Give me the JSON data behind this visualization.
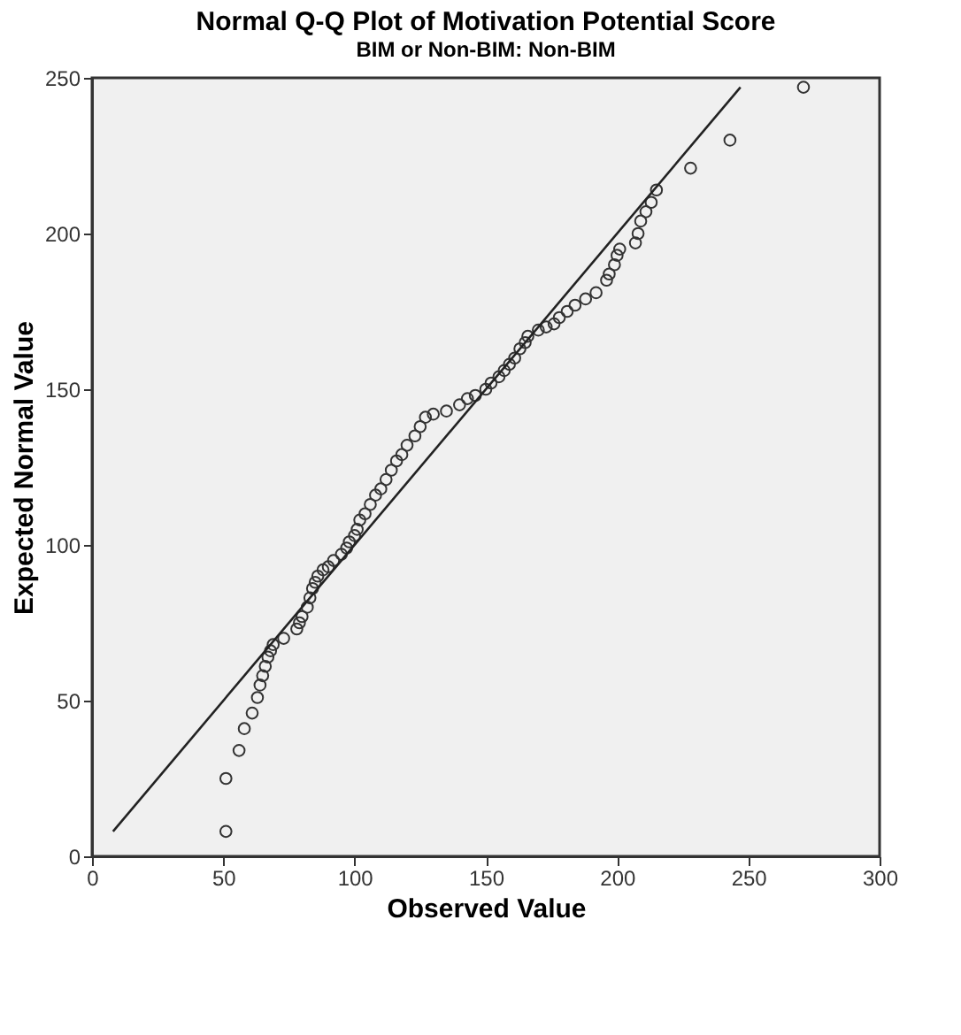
{
  "chart_data": {
    "type": "scatter",
    "title": "Normal Q-Q Plot of Motivation Potential Score",
    "subtitle": "BIM or Non-BIM: Non-BIM",
    "xlabel": "Observed Value",
    "ylabel": "Expected Normal Value",
    "xlim": [
      0,
      300
    ],
    "ylim": [
      0,
      250
    ],
    "xticks": [
      0,
      50,
      100,
      150,
      200,
      250,
      300
    ],
    "yticks": [
      0,
      50,
      100,
      150,
      200,
      250
    ],
    "grid": false,
    "marker": "circle",
    "series": [
      {
        "type": "scatter",
        "color": "#333333",
        "x": [
          51,
          51,
          56,
          58,
          61,
          63,
          64,
          65,
          66,
          67,
          68,
          69,
          73,
          78,
          79,
          80,
          82,
          83,
          84,
          85,
          86,
          88,
          90,
          92,
          95,
          97,
          98,
          100,
          101,
          102,
          104,
          106,
          108,
          110,
          112,
          114,
          116,
          118,
          120,
          123,
          125,
          127,
          130,
          135,
          140,
          143,
          146,
          150,
          152,
          155,
          157,
          159,
          161,
          163,
          165,
          166,
          170,
          173,
          176,
          178,
          181,
          184,
          188,
          192,
          196,
          197,
          199,
          200,
          201,
          207,
          208,
          209,
          211,
          213,
          215,
          228,
          243,
          271
        ],
        "values": [
          8,
          25,
          34,
          41,
          46,
          51,
          55,
          58,
          61,
          64,
          66,
          68,
          70,
          73,
          75,
          77,
          80,
          83,
          86,
          88,
          90,
          92,
          93,
          95,
          97,
          99,
          101,
          103,
          105,
          108,
          110,
          113,
          116,
          118,
          121,
          124,
          127,
          129,
          132,
          135,
          138,
          141,
          142,
          143,
          145,
          147,
          148,
          150,
          152,
          154,
          156,
          158,
          160,
          163,
          165,
          167,
          169,
          170,
          171,
          173,
          175,
          177,
          179,
          181,
          185,
          187,
          190,
          193,
          195,
          197,
          200,
          204,
          207,
          210,
          214,
          221,
          230,
          247
        ]
      },
      {
        "type": "line",
        "color": "#222222",
        "line_style": "solid",
        "marker": "none",
        "x": [
          8,
          247
        ],
        "values": [
          8,
          247
        ]
      }
    ]
  }
}
